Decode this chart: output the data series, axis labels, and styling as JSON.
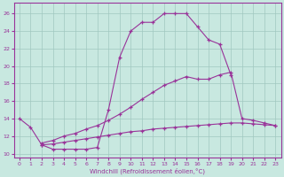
{
  "xlabel": "Windchill (Refroidissement éolien,°C)",
  "background_color": "#c8e8e0",
  "grid_color": "#a0c8c0",
  "line_color": "#993399",
  "xlim": [
    -0.5,
    23.5
  ],
  "ylim": [
    9.5,
    27.2
  ],
  "xticks": [
    0,
    1,
    2,
    3,
    4,
    5,
    6,
    7,
    8,
    9,
    10,
    11,
    12,
    13,
    14,
    15,
    16,
    17,
    18,
    19,
    20,
    21,
    22,
    23
  ],
  "yticks": [
    10,
    12,
    14,
    16,
    18,
    20,
    22,
    24,
    26
  ],
  "line1_x": [
    0,
    1,
    2,
    3,
    4,
    5,
    6,
    7,
    8,
    9,
    10,
    11,
    12,
    13,
    14,
    15,
    16,
    17,
    18,
    19
  ],
  "line1_y": [
    14.0,
    13.0,
    11.0,
    10.5,
    10.5,
    10.5,
    10.5,
    10.7,
    15.0,
    21.0,
    24.0,
    25.0,
    25.0,
    26.0,
    26.0,
    26.0,
    24.5,
    23.0,
    22.5,
    19.0
  ],
  "line2_x": [
    2,
    3,
    4,
    5,
    6,
    7,
    8,
    9,
    10,
    11,
    12,
    13,
    14,
    15,
    16,
    17,
    18,
    19,
    20,
    21,
    22,
    23
  ],
  "line2_y": [
    11.2,
    11.5,
    12.0,
    12.3,
    12.8,
    13.2,
    13.8,
    14.5,
    15.3,
    16.2,
    17.0,
    17.8,
    18.3,
    18.8,
    18.5,
    18.5,
    19.0,
    19.3,
    14.0,
    13.8,
    13.5,
    13.2
  ],
  "line3_x": [
    2,
    3,
    4,
    5,
    6,
    7,
    8,
    9,
    10,
    11,
    12,
    13,
    14,
    15,
    16,
    17,
    18,
    19,
    20,
    21,
    22,
    23
  ],
  "line3_y": [
    11.0,
    11.1,
    11.3,
    11.5,
    11.7,
    11.9,
    12.1,
    12.3,
    12.5,
    12.6,
    12.8,
    12.9,
    13.0,
    13.1,
    13.2,
    13.3,
    13.4,
    13.5,
    13.5,
    13.4,
    13.3,
    13.2
  ]
}
